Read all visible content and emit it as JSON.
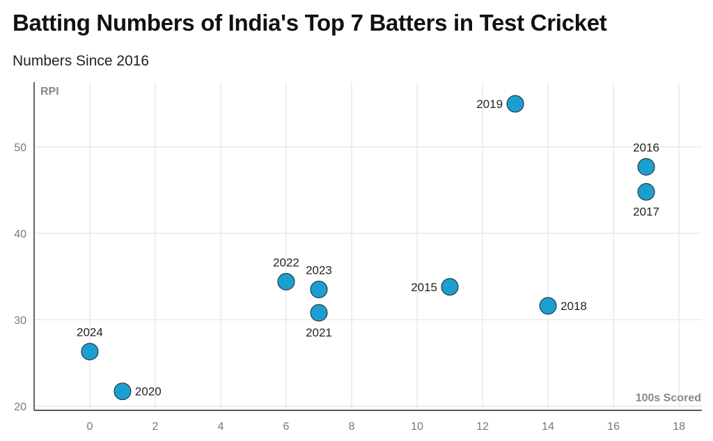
{
  "title": "Batting Numbers of India's Top 7 Batters in Test Cricket",
  "subtitle": "Numbers Since 2016",
  "chart_data": {
    "type": "scatter",
    "xlabel": "100s Scored",
    "ylabel": "RPI",
    "xlim": [
      -1.7,
      18.7
    ],
    "ylim": [
      19.5,
      57.5
    ],
    "x_ticks": [
      0,
      2,
      4,
      6,
      8,
      10,
      12,
      14,
      16,
      18
    ],
    "y_ticks": [
      20,
      30,
      40,
      50
    ],
    "grid": true,
    "point_color": "#1b9fd0",
    "points": [
      {
        "label": "2015",
        "x": 11,
        "y": 33.8,
        "label_pos": "left"
      },
      {
        "label": "2016",
        "x": 17,
        "y": 47.7,
        "label_pos": "top"
      },
      {
        "label": "2017",
        "x": 17,
        "y": 44.8,
        "label_pos": "bottom"
      },
      {
        "label": "2018",
        "x": 14,
        "y": 31.6,
        "label_pos": "right"
      },
      {
        "label": "2019",
        "x": 13,
        "y": 55.0,
        "label_pos": "left"
      },
      {
        "label": "2020",
        "x": 1,
        "y": 21.7,
        "label_pos": "right"
      },
      {
        "label": "2021",
        "x": 7,
        "y": 30.8,
        "label_pos": "bottom"
      },
      {
        "label": "2022",
        "x": 6,
        "y": 34.4,
        "label_pos": "top"
      },
      {
        "label": "2023",
        "x": 7,
        "y": 33.5,
        "label_pos": "top"
      },
      {
        "label": "2024",
        "x": 0,
        "y": 26.3,
        "label_pos": "top"
      }
    ]
  }
}
